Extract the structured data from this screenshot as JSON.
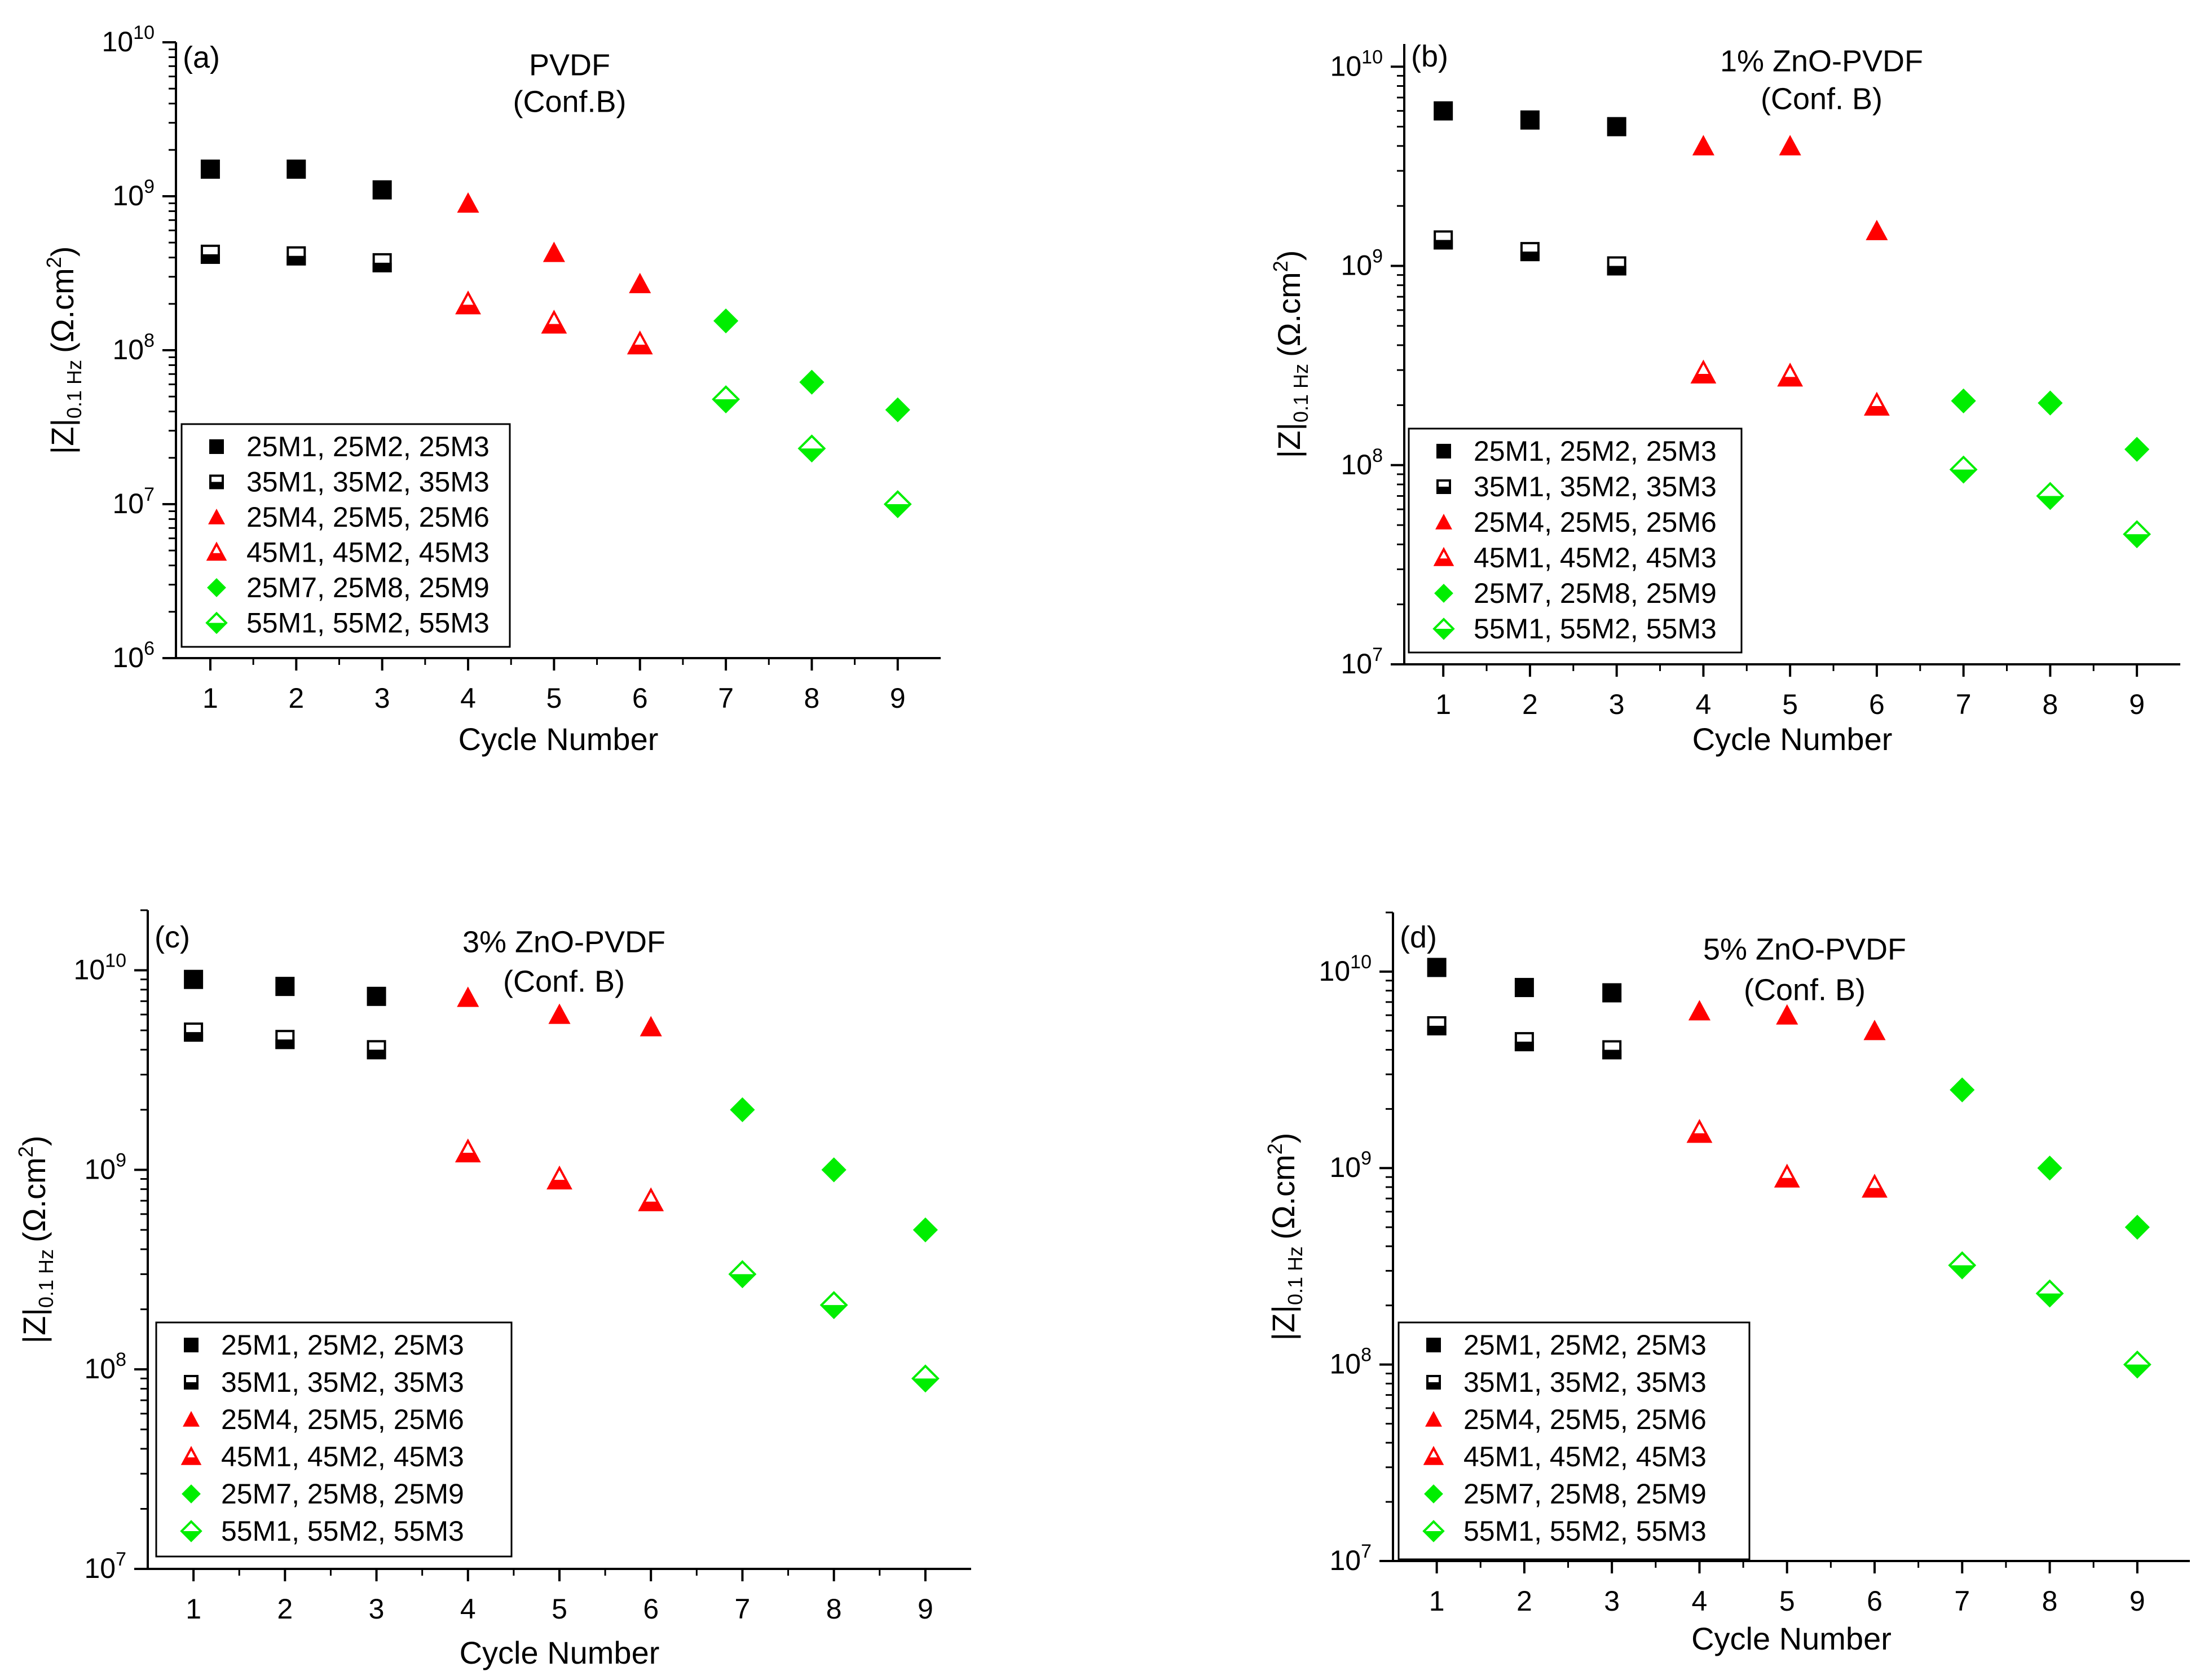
{
  "figure": {
    "x_axis_label": "Cycle Number",
    "y_axis_label_main": "|Z|",
    "y_axis_label_sub": "0.1 Hz",
    "y_axis_label_unit": "(Ω.cm",
    "y_axis_label_exp": "2",
    "y_axis_label_close": ")"
  },
  "chart_data": [
    {
      "type": "scatter",
      "panel": "(a)",
      "title": [
        "PVDF",
        "(Conf.B)"
      ],
      "xlabel": "Cycle Number",
      "ylabel": "|Z|0.1 Hz (Ω.cm2)",
      "y_scale": "log",
      "xlim": [
        0.6,
        9.5
      ],
      "ylim": [
        1000000,
        10000000000
      ],
      "x_ticks": [
        1,
        2,
        3,
        4,
        5,
        6,
        7,
        8,
        9
      ],
      "y_tick_exponents": [
        6,
        7,
        8,
        9,
        10
      ],
      "legend_position": "bottom-left",
      "series": [
        {
          "name": "25M1, 25M2, 25M3",
          "marker": "square",
          "fill": "solid",
          "color": "#000000",
          "x": [
            1,
            2,
            3
          ],
          "values": [
            1500000000,
            1500000000,
            1100000000
          ]
        },
        {
          "name": "35M1, 35M2, 35M3",
          "marker": "square",
          "fill": "half",
          "color": "#000000",
          "x": [
            1,
            2,
            3
          ],
          "values": [
            420000000,
            410000000,
            370000000
          ]
        },
        {
          "name": "25M4, 25M5, 25M6",
          "marker": "triangle",
          "fill": "solid",
          "color": "#ff0000",
          "x": [
            4,
            5,
            6
          ],
          "values": [
            900000000,
            430000000,
            270000000
          ]
        },
        {
          "name": "45M1, 45M2, 45M3",
          "marker": "triangle",
          "fill": "half",
          "color": "#ff0000",
          "x": [
            4,
            5,
            6
          ],
          "values": [
            200000000,
            150000000,
            110000000
          ]
        },
        {
          "name": "25M7, 25M8, 25M9",
          "marker": "diamond",
          "fill": "solid",
          "color": "#00ee00",
          "x": [
            7,
            8,
            9
          ],
          "values": [
            155000000,
            62000000,
            41000000
          ]
        },
        {
          "name": "55M1, 55M2, 55M3",
          "marker": "diamond",
          "fill": "half",
          "color": "#00ee00",
          "x": [
            7,
            8,
            9
          ],
          "values": [
            48000000,
            23000000,
            10000000
          ]
        }
      ]
    },
    {
      "type": "scatter",
      "panel": "(b)",
      "title": [
        "1% ZnO-PVDF",
        "(Conf. B)"
      ],
      "xlabel": "Cycle Number",
      "ylabel": "|Z|0.1 Hz (Ω.cm2)",
      "y_scale": "log",
      "xlim": [
        0.55,
        9.5
      ],
      "ylim": [
        10000000,
        13000000000
      ],
      "x_ticks": [
        1,
        2,
        3,
        4,
        5,
        6,
        7,
        8,
        9
      ],
      "y_tick_exponents": [
        7,
        8,
        9,
        10
      ],
      "legend_position": "bottom-left",
      "series": [
        {
          "name": "25M1, 25M2, 25M3",
          "marker": "square",
          "fill": "solid",
          "color": "#000000",
          "x": [
            1,
            2,
            3
          ],
          "values": [
            6000000000,
            5400000000,
            5000000000
          ]
        },
        {
          "name": "35M1, 35M2, 35M3",
          "marker": "square",
          "fill": "half",
          "color": "#000000",
          "x": [
            1,
            2,
            3
          ],
          "values": [
            1350000000,
            1180000000,
            1000000000
          ]
        },
        {
          "name": "25M4, 25M5, 25M6",
          "marker": "triangle",
          "fill": "solid",
          "color": "#ff0000",
          "x": [
            4,
            5,
            6
          ],
          "values": [
            4000000000,
            4000000000,
            1500000000
          ]
        },
        {
          "name": "45M1, 45M2, 45M3",
          "marker": "triangle",
          "fill": "half",
          "color": "#ff0000",
          "x": [
            4,
            5,
            6
          ],
          "values": [
            290000000,
            280000000,
            200000000
          ]
        },
        {
          "name": "25M7, 25M8, 25M9",
          "marker": "diamond",
          "fill": "solid",
          "color": "#00ee00",
          "x": [
            7,
            8,
            9
          ],
          "values": [
            210000000,
            205000000,
            120000000
          ]
        },
        {
          "name": "55M1, 55M2, 55M3",
          "marker": "diamond",
          "fill": "half",
          "color": "#00ee00",
          "x": [
            7,
            8,
            9
          ],
          "values": [
            95000000,
            70000000,
            45000000
          ]
        }
      ]
    },
    {
      "type": "scatter",
      "panel": "(c)",
      "title": [
        "3% ZnO-PVDF",
        "(Conf. B)"
      ],
      "xlabel": "Cycle Number",
      "ylabel": "|Z|0.1 Hz (Ω.cm2)",
      "y_scale": "log",
      "xlim": [
        0.5,
        9.5
      ],
      "ylim": [
        10000000,
        20000000000
      ],
      "x_ticks": [
        1,
        2,
        3,
        4,
        5,
        6,
        7,
        8,
        9
      ],
      "y_tick_exponents": [
        7,
        8,
        9,
        10
      ],
      "legend_position": "bottom-left",
      "series": [
        {
          "name": "25M1, 25M2, 25M3",
          "marker": "square",
          "fill": "solid",
          "color": "#000000",
          "x": [
            1,
            2,
            3
          ],
          "values": [
            9000000000,
            8300000000,
            7400000000
          ]
        },
        {
          "name": "35M1, 35M2, 35M3",
          "marker": "square",
          "fill": "half",
          "color": "#000000",
          "x": [
            1,
            2,
            3
          ],
          "values": [
            4900000000,
            4500000000,
            4000000000
          ]
        },
        {
          "name": "25M4, 25M5, 25M6",
          "marker": "triangle",
          "fill": "solid",
          "color": "#ff0000",
          "x": [
            4,
            5,
            6
          ],
          "values": [
            7300000000,
            6000000000,
            5200000000
          ]
        },
        {
          "name": "45M1, 45M2, 45M3",
          "marker": "triangle",
          "fill": "half",
          "color": "#ff0000",
          "x": [
            4,
            5,
            6
          ],
          "values": [
            1230000000,
            900000000,
            700000000
          ]
        },
        {
          "name": "25M7, 25M8, 25M9",
          "marker": "diamond",
          "fill": "solid",
          "color": "#00ee00",
          "x": [
            7,
            8,
            9
          ],
          "values": [
            2000000000,
            1000000000,
            500000000
          ]
        },
        {
          "name": "55M1, 55M2, 55M3",
          "marker": "diamond",
          "fill": "half",
          "color": "#00ee00",
          "x": [
            7,
            8,
            9
          ],
          "values": [
            300000000,
            210000000,
            90000000
          ]
        }
      ]
    },
    {
      "type": "scatter",
      "panel": "(d)",
      "title": [
        "5% ZnO-PVDF",
        "(Conf. B)"
      ],
      "xlabel": "Cycle Number",
      "ylabel": "|Z|0.1 Hz (Ω.cm2)",
      "y_scale": "log",
      "xlim": [
        0.5,
        9.6
      ],
      "ylim": [
        10000000,
        20000000000
      ],
      "x_ticks": [
        1,
        2,
        3,
        4,
        5,
        6,
        7,
        8,
        9
      ],
      "y_tick_exponents": [
        7,
        8,
        9,
        10
      ],
      "legend_position": "bottom-left",
      "series": [
        {
          "name": "25M1, 25M2, 25M3",
          "marker": "square",
          "fill": "solid",
          "color": "#000000",
          "x": [
            1,
            2,
            3
          ],
          "values": [
            10500000000,
            8300000000,
            7800000000
          ]
        },
        {
          "name": "35M1, 35M2, 35M3",
          "marker": "square",
          "fill": "half",
          "color": "#000000",
          "x": [
            1,
            2,
            3
          ],
          "values": [
            5300000000,
            4400000000,
            4000000000
          ]
        },
        {
          "name": "25M4, 25M5, 25M6",
          "marker": "triangle",
          "fill": "solid",
          "color": "#ff0000",
          "x": [
            4,
            5,
            6
          ],
          "values": [
            6300000000,
            6000000000,
            5000000000
          ]
        },
        {
          "name": "45M1, 45M2, 45M3",
          "marker": "triangle",
          "fill": "half",
          "color": "#ff0000",
          "x": [
            4,
            5,
            6
          ],
          "values": [
            1520000000,
            900000000,
            800000000
          ]
        },
        {
          "name": "25M7, 25M8, 25M9",
          "marker": "diamond",
          "fill": "solid",
          "color": "#00ee00",
          "x": [
            7,
            8,
            9
          ],
          "values": [
            2500000000,
            1000000000,
            500000000
          ]
        },
        {
          "name": "55M1, 55M2, 55M3",
          "marker": "diamond",
          "fill": "half",
          "color": "#00ee00",
          "x": [
            7,
            8,
            9
          ],
          "values": [
            320000000,
            230000000,
            100000000
          ]
        }
      ]
    }
  ]
}
